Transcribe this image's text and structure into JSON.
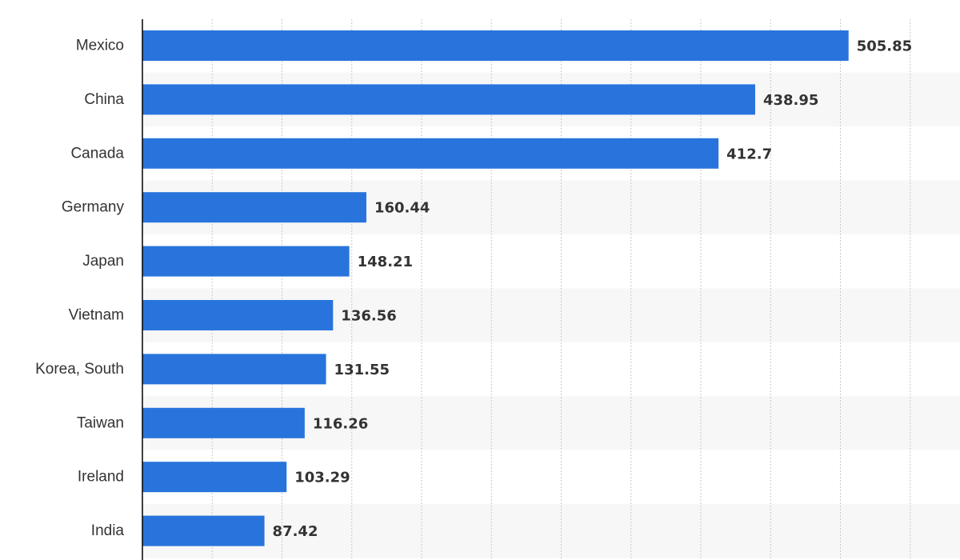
{
  "chart_data": {
    "type": "bar",
    "orientation": "horizontal",
    "title": "",
    "xlabel": "",
    "ylabel": "",
    "categories": [
      "Mexico",
      "China",
      "Canada",
      "Germany",
      "Japan",
      "Vietnam",
      "Korea, South",
      "Taiwan",
      "Ireland",
      "India"
    ],
    "values": [
      505.85,
      438.95,
      412.7,
      160.44,
      148.21,
      136.56,
      131.55,
      116.26,
      103.29,
      87.42
    ],
    "value_labels": [
      "505.85",
      "438.95",
      "412.7",
      "160.44",
      "148.21",
      "136.56",
      "131.55",
      "116.26",
      "103.29",
      "87.42"
    ],
    "xlim": [
      0,
      550
    ],
    "x_gridline_step": 50,
    "grid": true,
    "gridline_style": "dotted vertical",
    "alternating_row_bands": true,
    "legend": "none",
    "colors": {
      "bar": "#2874dc",
      "band": "#f7f7f7",
      "grid": "#c8c8c8",
      "axis": "#000000",
      "text": "#333333"
    }
  }
}
